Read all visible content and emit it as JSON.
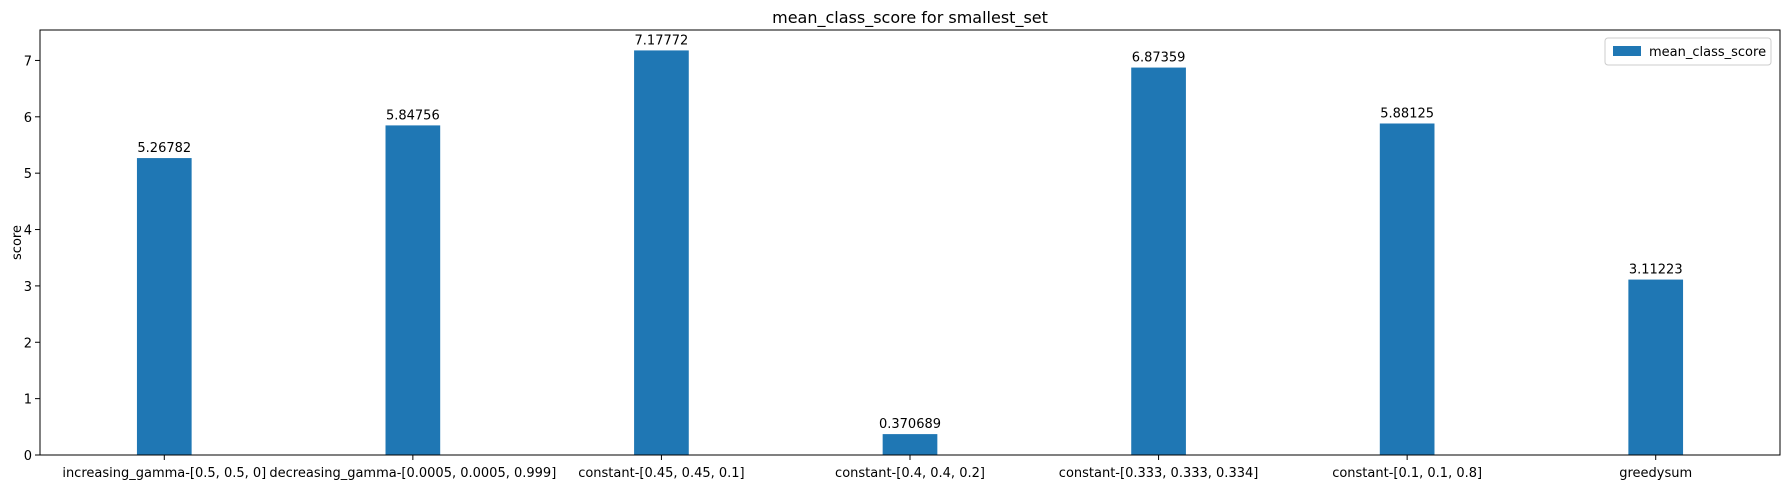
{
  "chart_data": {
    "type": "bar",
    "title": "mean_class_score for smallest_set",
    "xlabel": "",
    "ylabel": "score",
    "ylim": [
      0,
      7.54
    ],
    "yticks": [
      0,
      1,
      2,
      3,
      4,
      5,
      6,
      7
    ],
    "grid": false,
    "legend_position": "top-right",
    "categories": [
      "increasing_gamma-[0.5, 0.5, 0]",
      "decreasing_gamma-[0.0005, 0.0005, 0.999]",
      "constant-[0.45, 0.45, 0.1]",
      "constant-[0.4, 0.4, 0.2]",
      "constant-[0.333, 0.333, 0.334]",
      "constant-[0.1, 0.1, 0.8]",
      "greedysum"
    ],
    "series": [
      {
        "name": "mean_class_score",
        "color": "#1f77b4",
        "values": [
          5.26782,
          5.84756,
          7.17772,
          0.370689,
          6.87359,
          5.88125,
          3.11223
        ],
        "labels": [
          "5.26782",
          "5.84756",
          "7.17772",
          "0.370689",
          "6.87359",
          "5.88125",
          "3.11223"
        ]
      }
    ]
  }
}
